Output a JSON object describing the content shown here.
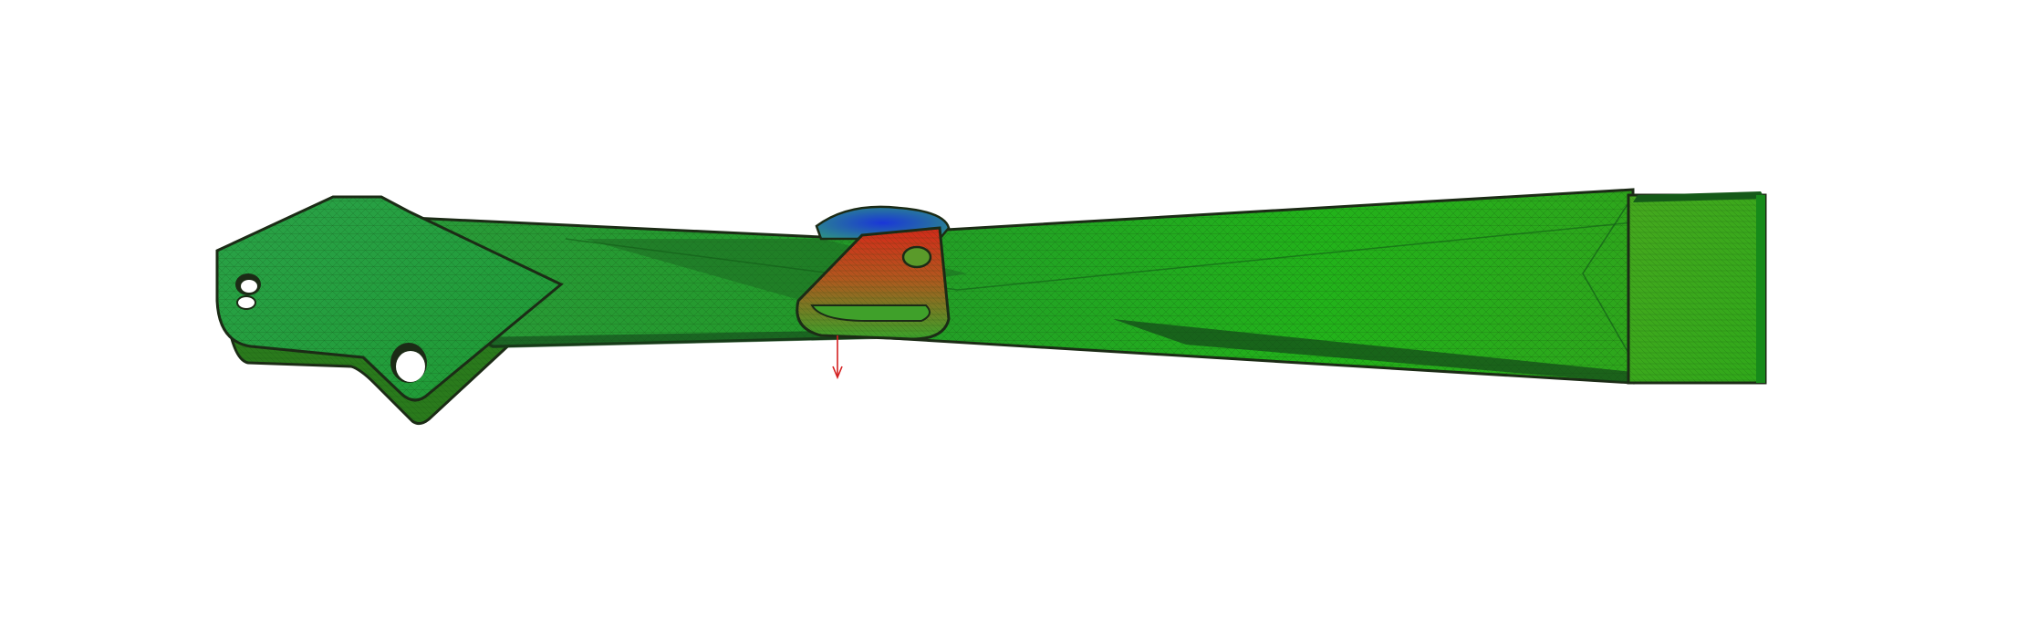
{
  "viewport": {
    "background": "#ffffff"
  },
  "model": {
    "colors": {
      "low_stress": "#1fb51a",
      "mid_stress": "#3aa62a",
      "high_stress": "#d8241a",
      "peak_stress": "#2430c8",
      "edge": "#1c2b16",
      "mesh_line": "#0f3a0c"
    },
    "load_arrow": {
      "color": "#d42020",
      "icon": "down-arrow-icon"
    }
  }
}
